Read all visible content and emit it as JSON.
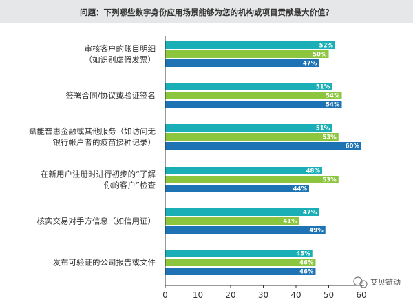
{
  "chart_data": {
    "type": "bar",
    "orientation": "horizontal",
    "title": "问题：下列哪些数字身份应用场景能够为您的机构或项目贡献最大价值？",
    "categories": [
      [
        "审核客户的账目明细",
        "（如识别虚假发票）"
      ],
      [
        "签署合同/协议或验证签名"
      ],
      [
        "赋能普惠金融或其他服务（如访问无",
        "银行帐户者的疫苗接种记录）"
      ],
      [
        "在新用户注册时进行初步的“了解",
        "你的客户”检查"
      ],
      [
        "核实交易对手方信息（如信用证）"
      ],
      [
        "发布可验证的公司报告或文件"
      ]
    ],
    "series": [
      {
        "values": [
          52,
          51,
          51,
          48,
          47,
          45
        ],
        "color": "#1AAFB6"
      },
      {
        "values": [
          50,
          54,
          53,
          53,
          41,
          46
        ],
        "color": "#8CC63F"
      },
      {
        "values": [
          47,
          54,
          60,
          44,
          49,
          46
        ],
        "color": "#1E73B4"
      }
    ],
    "xticks": [
      0,
      10,
      20,
      30,
      40,
      50,
      60
    ],
    "xlim": [
      0,
      60
    ],
    "label_suffix": "%",
    "grid": false,
    "legend": "none"
  },
  "watermark": "艾贝链动"
}
